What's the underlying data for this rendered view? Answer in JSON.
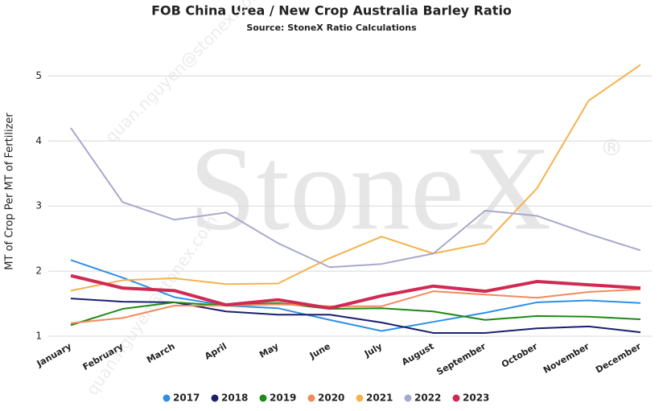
{
  "chart_data": {
    "type": "line",
    "title": "FOB China Urea / New Crop Australia Barley Ratio",
    "subtitle": "Source: StoneX Ratio Calculations",
    "y_label": "MT of Crop Per MT of Fertilizer",
    "watermark": "StoneX",
    "watermark_mark": "®",
    "watermark_email": "quan.nguyen@stonex.com",
    "categories": [
      "January",
      "February",
      "March",
      "April",
      "May",
      "June",
      "July",
      "August",
      "September",
      "October",
      "November",
      "December"
    ],
    "series": [
      {
        "name": "2017",
        "color": "#2f8fe8",
        "values": [
          2.17,
          1.9,
          1.6,
          1.47,
          1.43,
          1.25,
          1.08,
          1.22,
          1.36,
          1.52,
          1.55,
          1.51
        ]
      },
      {
        "name": "2018",
        "color": "#1a1f6e",
        "values": [
          1.58,
          1.53,
          1.52,
          1.38,
          1.33,
          1.33,
          1.21,
          1.05,
          1.05,
          1.12,
          1.15,
          1.06
        ]
      },
      {
        "name": "2019",
        "color": "#1e8a16",
        "values": [
          1.17,
          1.42,
          1.52,
          1.47,
          1.51,
          1.42,
          1.43,
          1.38,
          1.25,
          1.31,
          1.3,
          1.26
        ]
      },
      {
        "name": "2020",
        "color": "#f28a5a",
        "values": [
          1.2,
          1.28,
          1.47,
          1.47,
          1.49,
          1.46,
          1.46,
          1.69,
          1.64,
          1.59,
          1.68,
          1.72
        ]
      },
      {
        "name": "2021",
        "color": "#f5b24e",
        "values": [
          1.7,
          1.86,
          1.89,
          1.8,
          1.81,
          2.2,
          2.53,
          2.27,
          2.43,
          3.27,
          4.62,
          5.17
        ]
      },
      {
        "name": "2022",
        "color": "#a8a8cc",
        "values": [
          4.2,
          3.06,
          2.79,
          2.9,
          2.43,
          2.06,
          2.11,
          2.27,
          2.93,
          2.85,
          2.57,
          2.32
        ]
      },
      {
        "name": "2023",
        "color": "#d02a52",
        "values": [
          1.93,
          1.74,
          1.7,
          1.48,
          1.56,
          1.43,
          1.62,
          1.77,
          1.69,
          1.84,
          1.79,
          1.74
        ]
      }
    ],
    "ylim": [
      1,
      5.4
    ],
    "yticks": [
      1,
      2,
      3,
      4,
      5
    ],
    "grid": true,
    "legend": "bottom"
  }
}
